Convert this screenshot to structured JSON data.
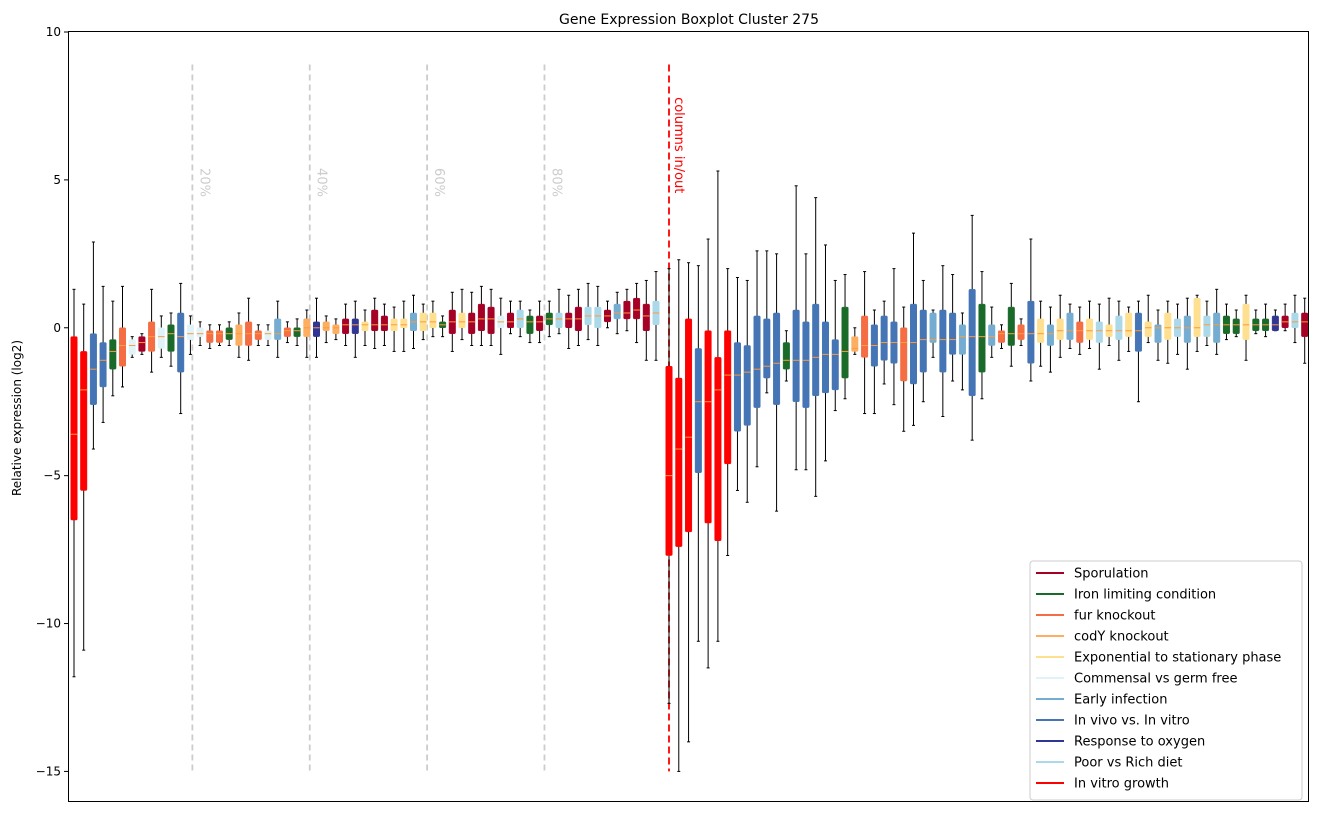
{
  "chart_data": {
    "type": "boxplot",
    "title": "Gene Expression Boxplot Cluster 275",
    "xlabel": "",
    "ylabel": "Relative expression (log2)",
    "ylim": [
      -16,
      10
    ],
    "y_ticks": [
      10,
      5,
      0,
      -5,
      -10,
      -15
    ],
    "y_tick_labels": [
      "10",
      "5",
      "0",
      "−5",
      "−10",
      "−15"
    ],
    "grid": false,
    "legend_position": "bottom-right",
    "percentile_lines": {
      "labels": [
        "20%",
        "40%",
        "60%",
        "80%"
      ],
      "color": "#cccccc",
      "y_range": [
        -15,
        8.9
      ]
    },
    "split_line": {
      "label": "columns in/out",
      "color": "#ff0000",
      "y_range": [
        -15,
        8.9
      ]
    },
    "median_color": "#ff9a3c",
    "whisker_color": "#000000",
    "legend": [
      {
        "name": "Sporulation",
        "color": "#a50026"
      },
      {
        "name": "Iron limiting condition",
        "color": "#1a6b2a"
      },
      {
        "name": "fur knockout",
        "color": "#f46d43"
      },
      {
        "name": "codY knockout",
        "color": "#fdae61"
      },
      {
        "name": "Exponential to stationary phase",
        "color": "#fee090"
      },
      {
        "name": "Commensal vs germ free",
        "color": "#e0f3f8"
      },
      {
        "name": "Early infection",
        "color": "#74add1"
      },
      {
        "name": "In vivo vs. In vitro",
        "color": "#4575b4"
      },
      {
        "name": "Response to oxygen",
        "color": "#313695"
      },
      {
        "name": "Poor vs Rich diet",
        "color": "#abd9e9"
      },
      {
        "name": "In vitro growth",
        "color": "#ff0000"
      }
    ],
    "left_boxes": [
      {
        "c": 10,
        "q1": -6.5,
        "med": -3.6,
        "q3": -0.3,
        "lo": -11.8,
        "hi": 1.3
      },
      {
        "c": 10,
        "q1": -5.5,
        "med": -2.1,
        "q3": -0.8,
        "lo": -10.9,
        "hi": 0.8
      },
      {
        "c": 7,
        "q1": -2.6,
        "med": -1.4,
        "q3": -0.2,
        "lo": -4.1,
        "hi": 2.9
      },
      {
        "c": 7,
        "q1": -2.0,
        "med": -1.1,
        "q3": -0.5,
        "lo": -3.2,
        "hi": 1.4
      },
      {
        "c": 1,
        "q1": -1.4,
        "med": -0.8,
        "q3": -0.4,
        "lo": -2.3,
        "hi": 0.9
      },
      {
        "c": 2,
        "q1": -1.3,
        "med": -0.6,
        "q3": 0.0,
        "lo": -2.0,
        "hi": 1.4
      },
      {
        "c": 5,
        "q1": -0.9,
        "med": -0.6,
        "q3": -0.4,
        "lo": -1.0,
        "hi": -0.3
      },
      {
        "c": 0,
        "q1": -0.8,
        "med": -0.5,
        "q3": -0.3,
        "lo": -0.9,
        "hi": -0.2
      },
      {
        "c": 2,
        "q1": -0.8,
        "med": -0.3,
        "q3": 0.2,
        "lo": -1.5,
        "hi": 1.3
      },
      {
        "c": 5,
        "q1": -0.7,
        "med": -0.3,
        "q3": 0.0,
        "lo": -1.0,
        "hi": 0.4
      },
      {
        "c": 1,
        "q1": -0.8,
        "med": -0.2,
        "q3": 0.1,
        "lo": -1.3,
        "hi": 0.5
      },
      {
        "c": 7,
        "q1": -1.5,
        "med": -0.3,
        "q3": 0.5,
        "lo": -2.9,
        "hi": 1.5
      },
      {
        "c": 5,
        "q1": -0.4,
        "med": -0.2,
        "q3": 0.1,
        "lo": -0.9,
        "hi": 0.4
      },
      {
        "c": 5,
        "q1": -0.3,
        "med": -0.2,
        "q3": 0.0,
        "lo": -0.6,
        "hi": 0.2
      },
      {
        "c": 2,
        "q1": -0.5,
        "med": -0.2,
        "q3": -0.1,
        "lo": -0.7,
        "hi": 0.1
      },
      {
        "c": 2,
        "q1": -0.5,
        "med": -0.2,
        "q3": -0.1,
        "lo": -0.6,
        "hi": 0.1
      },
      {
        "c": 1,
        "q1": -0.4,
        "med": -0.2,
        "q3": 0.0,
        "lo": -0.6,
        "hi": 0.2
      },
      {
        "c": 3,
        "q1": -0.6,
        "med": -0.2,
        "q3": 0.1,
        "lo": -1.0,
        "hi": 0.5
      },
      {
        "c": 2,
        "q1": -0.6,
        "med": -0.2,
        "q3": 0.2,
        "lo": -1.1,
        "hi": 1.0
      },
      {
        "c": 2,
        "q1": -0.4,
        "med": -0.2,
        "q3": -0.1,
        "lo": -0.6,
        "hi": 0.1
      },
      {
        "c": 5,
        "q1": -0.4,
        "med": -0.2,
        "q3": -0.1,
        "lo": -0.6,
        "hi": 0.1
      },
      {
        "c": 6,
        "q1": -0.4,
        "med": -0.2,
        "q3": 0.3,
        "lo": -1.0,
        "hi": 0.9
      },
      {
        "c": 2,
        "q1": -0.3,
        "med": -0.1,
        "q3": 0.0,
        "lo": -0.5,
        "hi": 0.2
      },
      {
        "c": 1,
        "q1": -0.3,
        "med": -0.1,
        "q3": 0.0,
        "lo": -0.6,
        "hi": 0.3
      },
      {
        "c": 3,
        "q1": -0.3,
        "med": 0.0,
        "q3": 0.3,
        "lo": -1.0,
        "hi": 0.6
      },
      {
        "c": 8,
        "q1": -0.3,
        "med": 0.0,
        "q3": 0.2,
        "lo": -1.0,
        "hi": 1.0
      },
      {
        "c": 3,
        "q1": -0.1,
        "med": 0.0,
        "q3": 0.2,
        "lo": -0.5,
        "hi": 0.4
      },
      {
        "c": 3,
        "q1": -0.2,
        "med": 0.0,
        "q3": 0.1,
        "lo": -0.4,
        "hi": 0.3
      },
      {
        "c": 0,
        "q1": -0.2,
        "med": 0.1,
        "q3": 0.3,
        "lo": -0.6,
        "hi": 0.8
      },
      {
        "c": 8,
        "q1": -0.2,
        "med": 0.1,
        "q3": 0.3,
        "lo": -1.0,
        "hi": 0.9
      },
      {
        "c": 4,
        "q1": -0.1,
        "med": 0.1,
        "q3": 0.2,
        "lo": -0.6,
        "hi": 0.6
      },
      {
        "c": 0,
        "q1": -0.1,
        "med": 0.1,
        "q3": 0.6,
        "lo": -0.7,
        "hi": 1.0
      },
      {
        "c": 0,
        "q1": -0.1,
        "med": 0.1,
        "q3": 0.4,
        "lo": -0.6,
        "hi": 0.8
      },
      {
        "c": 4,
        "q1": -0.1,
        "med": 0.1,
        "q3": 0.3,
        "lo": -0.8,
        "hi": 0.7
      },
      {
        "c": 4,
        "q1": 0.0,
        "med": 0.1,
        "q3": 0.3,
        "lo": -0.8,
        "hi": 0.9
      },
      {
        "c": 6,
        "q1": -0.1,
        "med": 0.2,
        "q3": 0.5,
        "lo": -0.7,
        "hi": 1.1
      },
      {
        "c": 4,
        "q1": -0.1,
        "med": 0.2,
        "q3": 0.5,
        "lo": -0.4,
        "hi": 0.8
      },
      {
        "c": 4,
        "q1": 0.0,
        "med": 0.2,
        "q3": 0.5,
        "lo": -0.3,
        "hi": 0.9
      },
      {
        "c": 1,
        "q1": 0.0,
        "med": 0.1,
        "q3": 0.2,
        "lo": -0.3,
        "hi": 0.4
      },
      {
        "c": 0,
        "q1": -0.2,
        "med": 0.2,
        "q3": 0.6,
        "lo": -0.8,
        "hi": 1.2
      },
      {
        "c": 4,
        "q1": 0.0,
        "med": 0.2,
        "q3": 0.5,
        "lo": -0.4,
        "hi": 1.3
      },
      {
        "c": 0,
        "q1": -0.2,
        "med": 0.2,
        "q3": 0.5,
        "lo": -0.6,
        "hi": 1.2
      },
      {
        "c": 0,
        "q1": -0.1,
        "med": 0.3,
        "q3": 0.8,
        "lo": -0.6,
        "hi": 1.4
      },
      {
        "c": 0,
        "q1": -0.2,
        "med": 0.3,
        "q3": 0.7,
        "lo": -0.6,
        "hi": 1.3
      },
      {
        "c": 5,
        "q1": 0.0,
        "med": 0.2,
        "q3": 0.4,
        "lo": -0.9,
        "hi": 1.0
      },
      {
        "c": 0,
        "q1": 0.0,
        "med": 0.2,
        "q3": 0.5,
        "lo": -0.2,
        "hi": 0.9
      },
      {
        "c": 9,
        "q1": 0.0,
        "med": 0.3,
        "q3": 0.6,
        "lo": -0.3,
        "hi": 0.9
      },
      {
        "c": 1,
        "q1": -0.2,
        "med": 0.2,
        "q3": 0.4,
        "lo": -0.5,
        "hi": 0.6
      },
      {
        "c": 0,
        "q1": -0.1,
        "med": 0.2,
        "q3": 0.4,
        "lo": -0.5,
        "hi": 0.9
      },
      {
        "c": 1,
        "q1": 0.1,
        "med": 0.3,
        "q3": 0.5,
        "lo": -0.3,
        "hi": 0.9
      },
      {
        "c": 9,
        "q1": 0.0,
        "med": 0.3,
        "q3": 0.5,
        "lo": -0.2,
        "hi": 1.3
      },
      {
        "c": 0,
        "q1": 0.0,
        "med": 0.3,
        "q3": 0.5,
        "lo": -0.7,
        "hi": 1.1
      },
      {
        "c": 0,
        "q1": -0.1,
        "med": 0.3,
        "q3": 0.7,
        "lo": -0.6,
        "hi": 1.3
      },
      {
        "c": 9,
        "q1": 0.1,
        "med": 0.4,
        "q3": 0.7,
        "lo": -0.4,
        "hi": 1.5
      },
      {
        "c": 9,
        "q1": 0.0,
        "med": 0.4,
        "q3": 0.7,
        "lo": -0.6,
        "hi": 1.4
      },
      {
        "c": 0,
        "q1": 0.2,
        "med": 0.4,
        "q3": 0.6,
        "lo": 0.0,
        "hi": 0.9
      },
      {
        "c": 6,
        "q1": 0.3,
        "med": 0.5,
        "q3": 0.8,
        "lo": -0.2,
        "hi": 1.2
      },
      {
        "c": 0,
        "q1": 0.3,
        "med": 0.5,
        "q3": 0.9,
        "lo": -0.1,
        "hi": 1.3
      },
      {
        "c": 0,
        "q1": 0.3,
        "med": 0.6,
        "q3": 1.0,
        "lo": -0.5,
        "hi": 1.5
      },
      {
        "c": 0,
        "q1": -0.1,
        "med": 0.4,
        "q3": 0.8,
        "lo": -1.1,
        "hi": 1.6
      },
      {
        "c": 9,
        "q1": 0.1,
        "med": 0.5,
        "q3": 0.9,
        "lo": -1.1,
        "hi": 1.9
      }
    ],
    "right_boxes": [
      {
        "c": 10,
        "q1": -7.7,
        "med": -5.0,
        "q3": -1.3,
        "lo": -12.7,
        "hi": 2.0
      },
      {
        "c": 10,
        "q1": -7.4,
        "med": -4.1,
        "q3": -1.7,
        "lo": -15.0,
        "hi": 2.3
      },
      {
        "c": 10,
        "q1": -6.9,
        "med": -3.7,
        "q3": 0.3,
        "lo": -14.0,
        "hi": 2.2
      },
      {
        "c": 7,
        "q1": -4.9,
        "med": -2.5,
        "q3": -0.7,
        "lo": -10.6,
        "hi": 2.1
      },
      {
        "c": 10,
        "q1": -6.6,
        "med": -2.5,
        "q3": -0.1,
        "lo": -11.5,
        "hi": 3.0
      },
      {
        "c": 10,
        "q1": -7.2,
        "med": -2.1,
        "q3": -1.0,
        "lo": -10.6,
        "hi": 5.3
      },
      {
        "c": 10,
        "q1": -4.6,
        "med": -1.6,
        "q3": -0.1,
        "lo": -7.7,
        "hi": 2.0
      },
      {
        "c": 7,
        "q1": -3.5,
        "med": -1.6,
        "q3": -0.5,
        "lo": -5.5,
        "hi": 1.7
      },
      {
        "c": 7,
        "q1": -3.3,
        "med": -1.5,
        "q3": -0.6,
        "lo": -5.9,
        "hi": 1.6
      },
      {
        "c": 7,
        "q1": -2.7,
        "med": -1.4,
        "q3": 0.4,
        "lo": -4.7,
        "hi": 2.6
      },
      {
        "c": 7,
        "q1": -1.7,
        "med": -1.3,
        "q3": 0.3,
        "lo": -2.2,
        "hi": 2.6
      },
      {
        "c": 7,
        "q1": -2.6,
        "med": -1.2,
        "q3": 0.5,
        "lo": -6.2,
        "hi": 2.5
      },
      {
        "c": 1,
        "q1": -1.4,
        "med": -1.1,
        "q3": -0.5,
        "lo": -1.8,
        "hi": -0.1
      },
      {
        "c": 7,
        "q1": -2.5,
        "med": -1.1,
        "q3": 0.6,
        "lo": -4.8,
        "hi": 4.8
      },
      {
        "c": 7,
        "q1": -2.7,
        "med": -1.1,
        "q3": 0.2,
        "lo": -4.8,
        "hi": 2.5
      },
      {
        "c": 7,
        "q1": -2.3,
        "med": -1.0,
        "q3": 0.8,
        "lo": -5.7,
        "hi": 4.4
      },
      {
        "c": 7,
        "q1": -2.2,
        "med": -0.9,
        "q3": 0.2,
        "lo": -4.5,
        "hi": 2.8
      },
      {
        "c": 7,
        "q1": -2.1,
        "med": -0.9,
        "q3": -0.4,
        "lo": -2.8,
        "hi": 1.6
      },
      {
        "c": 1,
        "q1": -1.7,
        "med": -0.8,
        "q3": 0.7,
        "lo": -2.4,
        "hi": 1.8
      },
      {
        "c": 3,
        "q1": -0.8,
        "med": -0.7,
        "q3": -0.3,
        "lo": -0.9,
        "hi": 0.0
      },
      {
        "c": 2,
        "q1": -1.0,
        "med": -0.6,
        "q3": 0.4,
        "lo": -2.9,
        "hi": 1.9
      },
      {
        "c": 7,
        "q1": -1.3,
        "med": -0.6,
        "q3": 0.1,
        "lo": -2.9,
        "hi": 0.6
      },
      {
        "c": 7,
        "q1": -1.1,
        "med": -0.5,
        "q3": 0.4,
        "lo": -1.9,
        "hi": 0.9
      },
      {
        "c": 7,
        "q1": -1.2,
        "med": -0.5,
        "q3": 0.2,
        "lo": -2.6,
        "hi": 2.0
      },
      {
        "c": 2,
        "q1": -1.8,
        "med": -0.5,
        "q3": 0.0,
        "lo": -3.5,
        "hi": 0.7
      },
      {
        "c": 7,
        "q1": -1.9,
        "med": -0.5,
        "q3": 0.8,
        "lo": -3.3,
        "hi": 3.2
      },
      {
        "c": 7,
        "q1": -1.5,
        "med": -0.4,
        "q3": 0.6,
        "lo": -2.5,
        "hi": 1.6
      },
      {
        "c": 6,
        "q1": -0.5,
        "med": -0.4,
        "q3": 0.5,
        "lo": -1.0,
        "hi": 0.6
      },
      {
        "c": 7,
        "q1": -1.5,
        "med": -0.4,
        "q3": 0.6,
        "lo": -3.0,
        "hi": 2.1
      },
      {
        "c": 7,
        "q1": -0.9,
        "med": -0.4,
        "q3": 0.5,
        "lo": -1.8,
        "hi": 1.8
      },
      {
        "c": 6,
        "q1": -0.9,
        "med": -0.3,
        "q3": 0.1,
        "lo": -2.1,
        "hi": 0.5
      },
      {
        "c": 7,
        "q1": -2.3,
        "med": -0.3,
        "q3": 1.3,
        "lo": -3.8,
        "hi": 3.8
      },
      {
        "c": 1,
        "q1": -1.5,
        "med": -0.3,
        "q3": 0.8,
        "lo": -2.4,
        "hi": 1.9
      },
      {
        "c": 6,
        "q1": -0.6,
        "med": -0.3,
        "q3": 0.1,
        "lo": -1.0,
        "hi": 0.7
      },
      {
        "c": 2,
        "q1": -0.5,
        "med": -0.2,
        "q3": -0.1,
        "lo": -0.7,
        "hi": 0.1
      },
      {
        "c": 1,
        "q1": -0.6,
        "med": -0.2,
        "q3": 0.7,
        "lo": -1.3,
        "hi": 1.5
      },
      {
        "c": 2,
        "q1": -0.4,
        "med": -0.2,
        "q3": 0.1,
        "lo": -0.6,
        "hi": 0.3
      },
      {
        "c": 7,
        "q1": -1.2,
        "med": -0.2,
        "q3": 0.9,
        "lo": -1.8,
        "hi": 3.0
      },
      {
        "c": 4,
        "q1": -0.5,
        "med": -0.2,
        "q3": 0.3,
        "lo": -1.3,
        "hi": 0.9
      },
      {
        "c": 6,
        "q1": -0.6,
        "med": -0.2,
        "q3": 0.1,
        "lo": -1.5,
        "hi": 0.7
      },
      {
        "c": 4,
        "q1": -0.4,
        "med": -0.1,
        "q3": 0.3,
        "lo": -1.0,
        "hi": 1.1
      },
      {
        "c": 6,
        "q1": -0.4,
        "med": -0.1,
        "q3": 0.5,
        "lo": -0.7,
        "hi": 0.8
      },
      {
        "c": 2,
        "q1": -0.5,
        "med": -0.1,
        "q3": 0.2,
        "lo": -0.9,
        "hi": 0.7
      },
      {
        "c": 4,
        "q1": -0.4,
        "med": -0.1,
        "q3": 0.3,
        "lo": -0.7,
        "hi": 0.9
      },
      {
        "c": 9,
        "q1": -0.5,
        "med": -0.1,
        "q3": 0.2,
        "lo": -1.4,
        "hi": 0.8
      },
      {
        "c": 4,
        "q1": -0.3,
        "med": -0.1,
        "q3": 0.1,
        "lo": -0.6,
        "hi": 1.0
      },
      {
        "c": 9,
        "q1": -0.4,
        "med": -0.1,
        "q3": 0.4,
        "lo": -1.1,
        "hi": 0.9
      },
      {
        "c": 4,
        "q1": -0.3,
        "med": -0.1,
        "q3": 0.5,
        "lo": -0.8,
        "hi": 0.7
      },
      {
        "c": 7,
        "q1": -0.8,
        "med": -0.1,
        "q3": 0.5,
        "lo": -2.5,
        "hi": 0.9
      },
      {
        "c": 4,
        "q1": -0.3,
        "med": 0.0,
        "q3": 0.2,
        "lo": -0.5,
        "hi": 1.1
      },
      {
        "c": 6,
        "q1": -0.5,
        "med": 0.0,
        "q3": 0.1,
        "lo": -1.1,
        "hi": 0.6
      },
      {
        "c": 4,
        "q1": -0.4,
        "med": 0.0,
        "q3": 0.5,
        "lo": -1.2,
        "hi": 0.9
      },
      {
        "c": 9,
        "q1": -0.3,
        "med": 0.0,
        "q3": 0.3,
        "lo": -0.9,
        "hi": 0.8
      },
      {
        "c": 6,
        "q1": -0.5,
        "med": 0.0,
        "q3": 0.4,
        "lo": -1.4,
        "hi": 1.0
      },
      {
        "c": 4,
        "q1": -0.3,
        "med": 0.0,
        "q3": 1.0,
        "lo": -0.8,
        "hi": 1.1
      },
      {
        "c": 9,
        "q1": -0.3,
        "med": 0.1,
        "q3": 0.4,
        "lo": -0.6,
        "hi": 0.9
      },
      {
        "c": 6,
        "q1": -0.5,
        "med": 0.1,
        "q3": 0.5,
        "lo": -0.9,
        "hi": 1.3
      },
      {
        "c": 1,
        "q1": -0.2,
        "med": 0.1,
        "q3": 0.4,
        "lo": -0.4,
        "hi": 0.8
      },
      {
        "c": 1,
        "q1": -0.2,
        "med": 0.1,
        "q3": 0.3,
        "lo": -0.3,
        "hi": 0.6
      },
      {
        "c": 4,
        "q1": -0.4,
        "med": 0.1,
        "q3": 0.8,
        "lo": -1.1,
        "hi": 1.1
      },
      {
        "c": 1,
        "q1": -0.1,
        "med": 0.1,
        "q3": 0.3,
        "lo": -0.2,
        "hi": 0.6
      },
      {
        "c": 1,
        "q1": -0.1,
        "med": 0.1,
        "q3": 0.3,
        "lo": -0.3,
        "hi": 0.8
      },
      {
        "c": 8,
        "q1": -0.1,
        "med": 0.1,
        "q3": 0.4,
        "lo": -0.1,
        "hi": 0.6
      },
      {
        "c": 0,
        "q1": 0.0,
        "med": 0.2,
        "q3": 0.4,
        "lo": -0.1,
        "hi": 0.8
      },
      {
        "c": 9,
        "q1": 0.0,
        "med": 0.2,
        "q3": 0.5,
        "lo": -0.5,
        "hi": 1.1
      },
      {
        "c": 0,
        "q1": -0.3,
        "med": 0.2,
        "q3": 0.5,
        "lo": -1.2,
        "hi": 1.0
      }
    ]
  }
}
